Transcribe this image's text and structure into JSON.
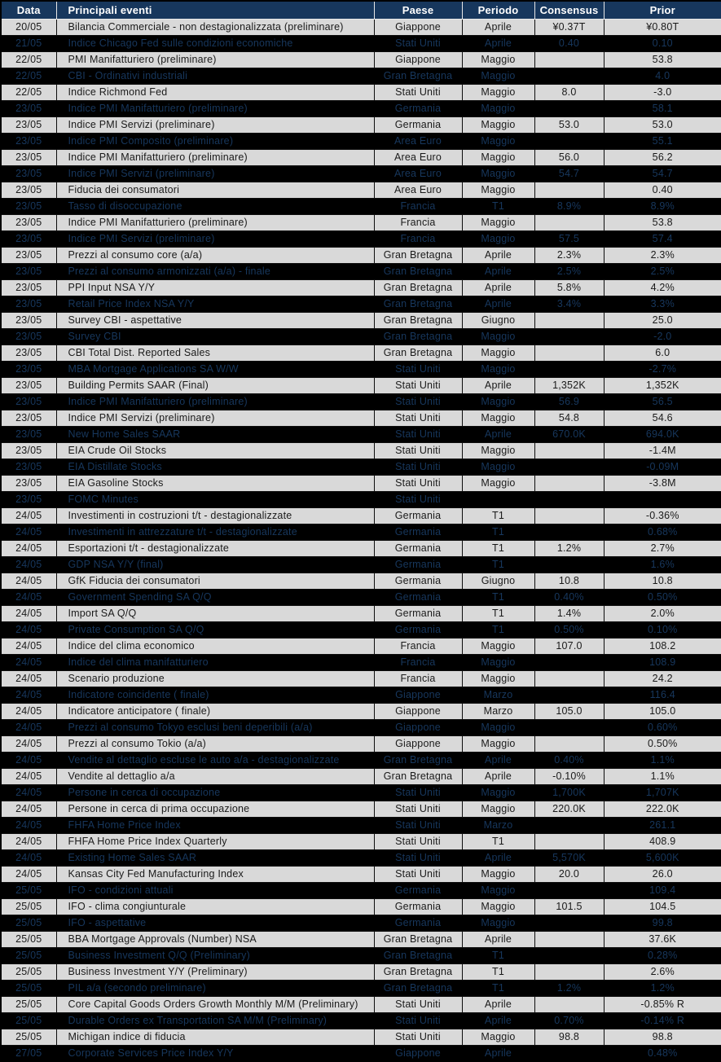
{
  "colors": {
    "header_bg": "#17375D",
    "header_text": "#FFFFFF",
    "row_bg": "#D9D9D9",
    "redacted_bg": "#000000",
    "redacted_text": "#17375D"
  },
  "table": {
    "columns": [
      "Data",
      "Principali eventi",
      "Paese",
      "Periodo",
      "Consensus",
      "Prior"
    ],
    "rows": [
      {
        "date": "20/05",
        "event": "Bilancia Commerciale -  non destagionalizzata (preliminare)",
        "country": "Giappone",
        "period": "Aprile",
        "consensus": "¥0.37T",
        "prior": "¥0.80T",
        "redacted": false
      },
      {
        "date": "21/05",
        "event": "Indice Chicago Fed sulle condizioni economiche",
        "country": "Stati Uniti",
        "period": "Aprile",
        "consensus": "0.40",
        "prior": "0.10",
        "redacted": true
      },
      {
        "date": "22/05",
        "event": "PMI Manifatturiero (preliminare)",
        "country": "Giappone",
        "period": "Maggio",
        "consensus": "",
        "prior": "53.8",
        "redacted": false
      },
      {
        "date": "22/05",
        "event": "CBI - Ordinativi industriali",
        "country": "Gran Bretagna",
        "period": "Maggio",
        "consensus": "",
        "prior": "4.0",
        "redacted": true
      },
      {
        "date": "22/05",
        "event": "Indice Richmond Fed",
        "country": "Stati Uniti",
        "period": "Maggio",
        "consensus": "8.0",
        "prior": "-3.0",
        "redacted": false
      },
      {
        "date": "23/05",
        "event": "Indice PMI Manifatturiero (preliminare)",
        "country": "Germania",
        "period": "Maggio",
        "consensus": "",
        "prior": "58.1",
        "redacted": true
      },
      {
        "date": "23/05",
        "event": "Indice PMI Servizi (preliminare)",
        "country": "Germania",
        "period": "Maggio",
        "consensus": "53.0",
        "prior": "53.0",
        "redacted": false
      },
      {
        "date": "23/05",
        "event": "Indice PMI Composito (preliminare)",
        "country": "Area Euro",
        "period": "Maggio",
        "consensus": "",
        "prior": "55.1",
        "redacted": true
      },
      {
        "date": "23/05",
        "event": "Indice PMI Manifatturiero (preliminare)",
        "country": "Area Euro",
        "period": "Maggio",
        "consensus": "56.0",
        "prior": "56.2",
        "redacted": false
      },
      {
        "date": "23/05",
        "event": "Indice PMI Servizi (preliminare)",
        "country": "Area Euro",
        "period": "Maggio",
        "consensus": "54.7",
        "prior": "54.7",
        "redacted": true
      },
      {
        "date": "23/05",
        "event": "Fiducia dei consumatori",
        "country": "Area Euro",
        "period": "Maggio",
        "consensus": "",
        "prior": "0.40",
        "redacted": false
      },
      {
        "date": "23/05",
        "event": "Tasso di disoccupazione",
        "country": "Francia",
        "period": "T1",
        "consensus": "8.9%",
        "prior": "8.9%",
        "redacted": true
      },
      {
        "date": "23/05",
        "event": "Indice PMI Manifatturiero (preliminare)",
        "country": "Francia",
        "period": "Maggio",
        "consensus": "",
        "prior": "53.8",
        "redacted": false
      },
      {
        "date": "23/05",
        "event": "Indice PMI Servizi (preliminare)",
        "country": "Francia",
        "period": "Maggio",
        "consensus": "57.5",
        "prior": "57.4",
        "redacted": true
      },
      {
        "date": "23/05",
        "event": "Prezzi al consumo core (a/a)",
        "country": "Gran Bretagna",
        "period": "Aprile",
        "consensus": "2.3%",
        "prior": "2.3%",
        "redacted": false
      },
      {
        "date": "23/05",
        "event": "Prezzi al consumo armonizzati (a/a) - finale",
        "country": "Gran Bretagna",
        "period": "Aprile",
        "consensus": "2.5%",
        "prior": "2.5%",
        "redacted": true
      },
      {
        "date": "23/05",
        "event": "PPI Input NSA Y/Y",
        "country": "Gran Bretagna",
        "period": "Aprile",
        "consensus": "5.8%",
        "prior": "4.2%",
        "redacted": false
      },
      {
        "date": "23/05",
        "event": "Retail Price Index NSA Y/Y",
        "country": "Gran Bretagna",
        "period": "Aprile",
        "consensus": "3.4%",
        "prior": "3.3%",
        "redacted": true
      },
      {
        "date": "23/05",
        "event": "Survey CBI - aspettative",
        "country": "Gran Bretagna",
        "period": "Giugno",
        "consensus": "",
        "prior": "25.0",
        "redacted": false
      },
      {
        "date": "23/05",
        "event": "Survey CBI",
        "country": "Gran Bretagna",
        "period": "Maggio",
        "consensus": "",
        "prior": "-2.0",
        "redacted": true
      },
      {
        "date": "23/05",
        "event": "CBI Total Dist. Reported Sales",
        "country": "Gran Bretagna",
        "period": "Maggio",
        "consensus": "",
        "prior": "6.0",
        "redacted": false
      },
      {
        "date": "23/05",
        "event": "MBA Mortgage Applications SA W/W",
        "country": "Stati Uniti",
        "period": "Maggio",
        "consensus": "",
        "prior": "-2.7%",
        "redacted": true
      },
      {
        "date": "23/05",
        "event": "Building Permits SAAR (Final)",
        "country": "Stati Uniti",
        "period": "Aprile",
        "consensus": "1,352K",
        "prior": "1,352K",
        "redacted": false
      },
      {
        "date": "23/05",
        "event": "Indice PMI Manifatturiero (preliminare)",
        "country": "Stati Uniti",
        "period": "Maggio",
        "consensus": "56.9",
        "prior": "56.5",
        "redacted": true
      },
      {
        "date": "23/05",
        "event": "Indice PMI Servizi (preliminare)",
        "country": "Stati Uniti",
        "period": "Maggio",
        "consensus": "54.8",
        "prior": "54.6",
        "redacted": false
      },
      {
        "date": "23/05",
        "event": "New Home Sales SAAR",
        "country": "Stati Uniti",
        "period": "Aprile",
        "consensus": "670.0K",
        "prior": "694.0K",
        "redacted": true
      },
      {
        "date": "23/05",
        "event": "EIA Crude Oil Stocks",
        "country": "Stati Uniti",
        "period": "Maggio",
        "consensus": "",
        "prior": "-1.4M",
        "redacted": false
      },
      {
        "date": "23/05",
        "event": "EIA Distillate Stocks",
        "country": "Stati Uniti",
        "period": "Maggio",
        "consensus": "",
        "prior": "-0.09M",
        "redacted": true
      },
      {
        "date": "23/05",
        "event": "EIA Gasoline Stocks",
        "country": "Stati Uniti",
        "period": "Maggio",
        "consensus": "",
        "prior": "-3.8M",
        "redacted": false
      },
      {
        "date": "23/05",
        "event": "FOMC Minutes",
        "country": "Stati Uniti",
        "period": "",
        "consensus": "",
        "prior": "",
        "redacted": true
      },
      {
        "date": "24/05",
        "event": "Investimenti in costruzioni t/t - destagionalizzate",
        "country": "Germania",
        "period": "T1",
        "consensus": "",
        "prior": "-0.36%",
        "redacted": false
      },
      {
        "date": "24/05",
        "event": "Investimenti in attrezzature t/t - destagionalizzate",
        "country": "Germania",
        "period": "T1",
        "consensus": "",
        "prior": "0.68%",
        "redacted": true
      },
      {
        "date": "24/05",
        "event": "Esportazioni t/t - destagionalizzate",
        "country": "Germania",
        "period": "T1",
        "consensus": "1.2%",
        "prior": "2.7%",
        "redacted": false
      },
      {
        "date": "24/05",
        "event": "GDP NSA Y/Y (final)",
        "country": "Germania",
        "period": "T1",
        "consensus": "",
        "prior": "1.6%",
        "redacted": true
      },
      {
        "date": "24/05",
        "event": "GfK Fiducia dei consumatori",
        "country": "Germania",
        "period": "Giugno",
        "consensus": "10.8",
        "prior": "10.8",
        "redacted": false
      },
      {
        "date": "24/05",
        "event": "Government Spending SA Q/Q",
        "country": "Germania",
        "period": "T1",
        "consensus": "0.40%",
        "prior": "0.50%",
        "redacted": true
      },
      {
        "date": "24/05",
        "event": "Import SA Q/Q",
        "country": "Germania",
        "period": "T1",
        "consensus": "1.4%",
        "prior": "2.0%",
        "redacted": false
      },
      {
        "date": "24/05",
        "event": "Private Consumption SA Q/Q",
        "country": "Germania",
        "period": "T1",
        "consensus": "0.50%",
        "prior": "0.10%",
        "redacted": true
      },
      {
        "date": "24/05",
        "event": "Indice del clima economico",
        "country": "Francia",
        "period": "Maggio",
        "consensus": "107.0",
        "prior": "108.2",
        "redacted": false
      },
      {
        "date": "24/05",
        "event": "Indice del clima manifatturiero",
        "country": "Francia",
        "period": "Maggio",
        "consensus": "",
        "prior": "108.9",
        "redacted": true
      },
      {
        "date": "24/05",
        "event": "Scenario produzione",
        "country": "Francia",
        "period": "Maggio",
        "consensus": "",
        "prior": "24.2",
        "redacted": false
      },
      {
        "date": "24/05",
        "event": "Indicatore coincidente ( finale)",
        "country": "Giappone",
        "period": "Marzo",
        "consensus": "",
        "prior": "116.4",
        "redacted": true
      },
      {
        "date": "24/05",
        "event": "Indicatore anticipatore ( finale)",
        "country": "Giappone",
        "period": "Marzo",
        "consensus": "105.0",
        "prior": "105.0",
        "redacted": false
      },
      {
        "date": "24/05",
        "event": "Prezzi al consumo Tokyo esclusi beni deperibili (a/a)",
        "country": "Giappone",
        "period": "Maggio",
        "consensus": "",
        "prior": "0.60%",
        "redacted": true
      },
      {
        "date": "24/05",
        "event": "Prezzi al consumo Tokio (a/a)",
        "country": "Giappone",
        "period": "Maggio",
        "consensus": "",
        "prior": "0.50%",
        "redacted": false
      },
      {
        "date": "24/05",
        "event": "Vendite al dettaglio escluse le auto a/a - destagionalizzate",
        "country": "Gran Bretagna",
        "period": "Aprile",
        "consensus": "0.40%",
        "prior": "1.1%",
        "redacted": true
      },
      {
        "date": "24/05",
        "event": "Vendite al dettaglio a/a",
        "country": "Gran Bretagna",
        "period": "Aprile",
        "consensus": "-0.10%",
        "prior": "1.1%",
        "redacted": false
      },
      {
        "date": "24/05",
        "event": "Persone in cerca di occupazione",
        "country": "Stati Uniti",
        "period": "Maggio",
        "consensus": "1,700K",
        "prior": "1,707K",
        "redacted": true
      },
      {
        "date": "24/05",
        "event": "Persone in cerca di prima occupazione",
        "country": "Stati Uniti",
        "period": "Maggio",
        "consensus": "220.0K",
        "prior": "222.0K",
        "redacted": false
      },
      {
        "date": "24/05",
        "event": "FHFA Home Price Index",
        "country": "Stati Uniti",
        "period": "Marzo",
        "consensus": "",
        "prior": "261.1",
        "redacted": true
      },
      {
        "date": "24/05",
        "event": "FHFA Home Price Index Quarterly",
        "country": "Stati Uniti",
        "period": "T1",
        "consensus": "",
        "prior": "408.9",
        "redacted": false
      },
      {
        "date": "24/05",
        "event": "Existing Home Sales SAAR",
        "country": "Stati Uniti",
        "period": "Aprile",
        "consensus": "5,570K",
        "prior": "5,600K",
        "redacted": true
      },
      {
        "date": "24/05",
        "event": "Kansas City Fed Manufacturing Index",
        "country": "Stati Uniti",
        "period": "Maggio",
        "consensus": "20.0",
        "prior": "26.0",
        "redacted": false
      },
      {
        "date": "25/05",
        "event": "IFO - condizioni attuali",
        "country": "Germania",
        "period": "Maggio",
        "consensus": "",
        "prior": "109.4",
        "redacted": true
      },
      {
        "date": "25/05",
        "event": "IFO - clima congiunturale",
        "country": "Germania",
        "period": "Maggio",
        "consensus": "101.5",
        "prior": "104.5",
        "redacted": false
      },
      {
        "date": "25/05",
        "event": "IFO - aspettative",
        "country": "Germania",
        "period": "Maggio",
        "consensus": "",
        "prior": "99.8",
        "redacted": true
      },
      {
        "date": "25/05",
        "event": "BBA Mortgage Approvals (Number) NSA",
        "country": "Gran Bretagna",
        "period": "Aprile",
        "consensus": "",
        "prior": "37.6K",
        "redacted": false
      },
      {
        "date": "25/05",
        "event": "Business Investment Q/Q (Preliminary)",
        "country": "Gran Bretagna",
        "period": "T1",
        "consensus": "",
        "prior": "0.28%",
        "redacted": true
      },
      {
        "date": "25/05",
        "event": "Business Investment Y/Y (Preliminary)",
        "country": "Gran Bretagna",
        "period": "T1",
        "consensus": "",
        "prior": "2.6%",
        "redacted": false
      },
      {
        "date": "25/05",
        "event": "PIL a/a (secondo preliminare)",
        "country": "Gran Bretagna",
        "period": "T1",
        "consensus": "1.2%",
        "prior": "1.2%",
        "redacted": true
      },
      {
        "date": "25/05",
        "event": "Core Capital Goods Orders Growth Monthly M/M (Preliminary)",
        "country": "Stati Uniti",
        "period": "Aprile",
        "consensus": "",
        "prior": "-0.85% R",
        "redacted": false
      },
      {
        "date": "25/05",
        "event": "Durable Orders ex Transportation SA M/M (Preliminary)",
        "country": "Stati Uniti",
        "period": "Aprile",
        "consensus": "0.70%",
        "prior": "-0.14% R",
        "redacted": true
      },
      {
        "date": "25/05",
        "event": "Michigan indice di fiducia",
        "country": "Stati Uniti",
        "period": "Maggio",
        "consensus": "98.8",
        "prior": "98.8",
        "redacted": false
      },
      {
        "date": "27/05",
        "event": "Corporate Services Price Index Y/Y",
        "country": "Giappone",
        "period": "Aprile",
        "consensus": "",
        "prior": "0.48%",
        "redacted": true
      }
    ]
  }
}
